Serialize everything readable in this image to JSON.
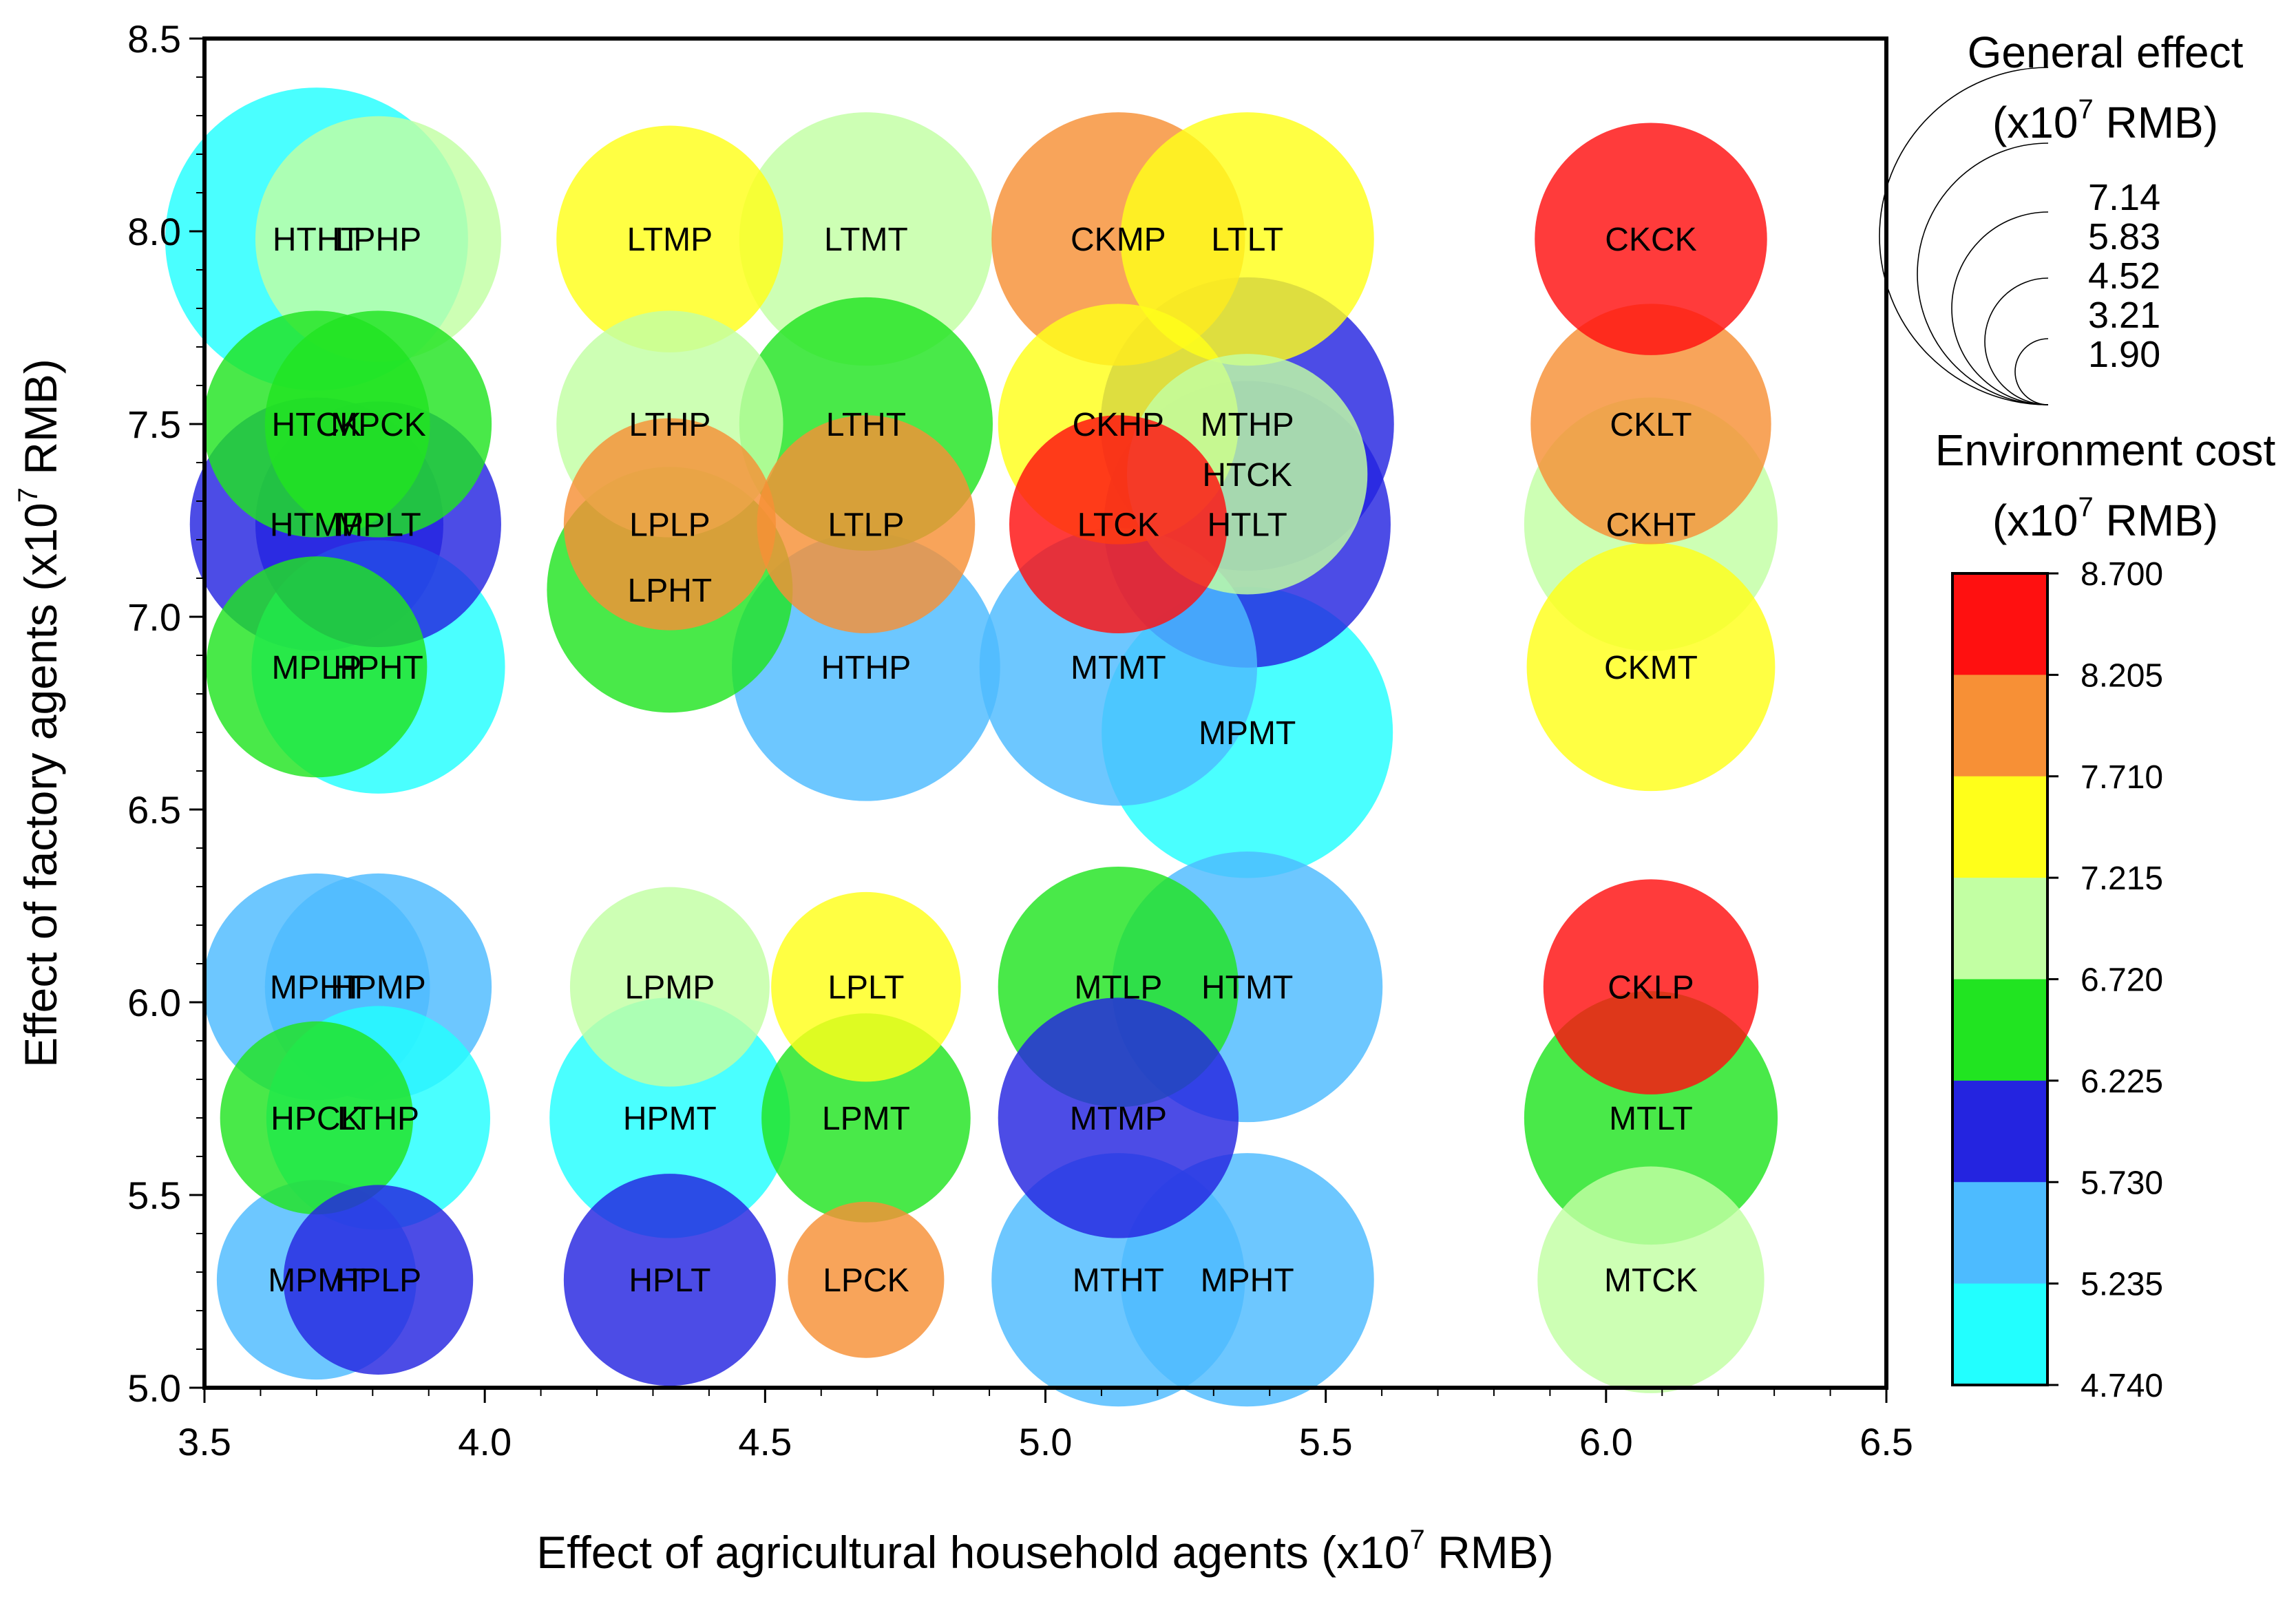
{
  "chart_data": {
    "type": "bubble",
    "title": "",
    "xlabel": "Effect of agricultural household agents (x10",
    "xlabel_exp": "7",
    "xlabel_unit": " RMB)",
    "ylabel": "Effect of factory agents (x10",
    "ylabel_exp": "7",
    "ylabel_unit": " RMB)",
    "xlim": [
      3.5,
      6.5
    ],
    "ylim": [
      5.0,
      8.5
    ],
    "x_ticks": [
      "3.5",
      "4.0",
      "4.5",
      "5.0",
      "5.5",
      "6.0",
      "6.5"
    ],
    "y_ticks": [
      "5.0",
      "5.5",
      "6.0",
      "6.5",
      "7.0",
      "7.5",
      "8.0",
      "8.5"
    ],
    "grid": false,
    "size_legend": {
      "title_line1": "General effect",
      "title_line2_prefix": "(x10",
      "title_line2_exp": "7",
      "title_line2_suffix": " RMB)",
      "values": [
        "7.14",
        "5.83",
        "4.52",
        "3.21",
        "1.90"
      ]
    },
    "color_legend": {
      "title_line1": "Environment cost",
      "title_line2_prefix": "(x10",
      "title_line2_exp": "7",
      "title_line2_suffix": " RMB)",
      "ticks": [
        "8.700",
        "8.205",
        "7.710",
        "7.215",
        "6.720",
        "6.225",
        "5.730",
        "5.235",
        "4.740"
      ],
      "colors": [
        "#ff1010",
        "#f79036",
        "#ffff1a",
        "#c2ffa3",
        "#21e421",
        "#2424e0",
        "#4dbbff",
        "#22ffff"
      ]
    },
    "points": [
      {
        "label": "HTHT",
        "x": 3.7,
        "y": 7.98,
        "size": 7.14,
        "cost": 4.9
      },
      {
        "label": "LPHP",
        "x": 3.81,
        "y": 7.98,
        "size": 4.7,
        "cost": 7.0
      },
      {
        "label": "LTMP",
        "x": 4.33,
        "y": 7.98,
        "size": 4.0,
        "cost": 7.4
      },
      {
        "label": "LTMT",
        "x": 4.68,
        "y": 7.98,
        "size": 5.0,
        "cost": 7.0
      },
      {
        "label": "CKMP",
        "x": 5.13,
        "y": 7.98,
        "size": 5.0,
        "cost": 7.9
      },
      {
        "label": "LTLT",
        "x": 5.36,
        "y": 7.98,
        "size": 5.0,
        "cost": 7.4
      },
      {
        "label": "CKCK",
        "x": 6.08,
        "y": 7.98,
        "size": 4.2,
        "cost": 8.5
      },
      {
        "label": "HTCK",
        "x": 3.7,
        "y": 7.5,
        "size": 4.0,
        "cost": 6.5
      },
      {
        "label": "MPCK",
        "x": 3.81,
        "y": 7.5,
        "size": 4.0,
        "cost": 6.5
      },
      {
        "label": "LTHP",
        "x": 4.33,
        "y": 7.5,
        "size": 4.0,
        "cost": 7.0
      },
      {
        "label": "LTHT",
        "x": 4.68,
        "y": 7.5,
        "size": 5.0,
        "cost": 6.5
      },
      {
        "label": "CKHP",
        "x": 5.13,
        "y": 7.5,
        "size": 4.5,
        "cost": 7.4
      },
      {
        "label": "MTHP",
        "x": 5.36,
        "y": 7.5,
        "size": 6.7,
        "cost": 6.0
      },
      {
        "label": "CKLT",
        "x": 6.08,
        "y": 7.5,
        "size": 4.5,
        "cost": 7.9
      },
      {
        "label": "HTCK",
        "x": 5.36,
        "y": 7.37,
        "size": 4.5,
        "cost": 7.0
      },
      {
        "label": "HTMP",
        "x": 3.7,
        "y": 7.24,
        "size": 5.0,
        "cost": 6.0
      },
      {
        "label": "MPLT",
        "x": 3.81,
        "y": 7.24,
        "size": 4.7,
        "cost": 6.0
      },
      {
        "label": "LPLP",
        "x": 4.33,
        "y": 7.24,
        "size": 3.5,
        "cost": 7.9
      },
      {
        "label": "LTLP",
        "x": 4.68,
        "y": 7.24,
        "size": 3.7,
        "cost": 7.9
      },
      {
        "label": "LTCK",
        "x": 5.13,
        "y": 7.24,
        "size": 3.7,
        "cost": 8.5
      },
      {
        "label": "HTLT",
        "x": 5.36,
        "y": 7.24,
        "size": 6.4,
        "cost": 6.0
      },
      {
        "label": "CKHT",
        "x": 6.08,
        "y": 7.24,
        "size": 5.0,
        "cost": 7.0
      },
      {
        "label": "LPHT",
        "x": 4.33,
        "y": 7.07,
        "size": 4.7,
        "cost": 6.5
      },
      {
        "label": "MPLP",
        "x": 3.7,
        "y": 6.87,
        "size": 3.8,
        "cost": 6.5
      },
      {
        "label": "HPHT",
        "x": 3.81,
        "y": 6.87,
        "size": 5.0,
        "cost": 4.9
      },
      {
        "label": "HTHP",
        "x": 4.68,
        "y": 6.87,
        "size": 5.6,
        "cost": 5.5
      },
      {
        "label": "MTMT",
        "x": 5.13,
        "y": 6.87,
        "size": 6.0,
        "cost": 5.5
      },
      {
        "label": "CKMT",
        "x": 6.08,
        "y": 6.87,
        "size": 4.8,
        "cost": 7.4
      },
      {
        "label": "MPMT",
        "x": 5.36,
        "y": 6.7,
        "size": 6.6,
        "cost": 4.9
      },
      {
        "label": "MPHT",
        "x": 3.7,
        "y": 6.04,
        "size": 4.0,
        "cost": 5.5
      },
      {
        "label": "HPMP",
        "x": 3.81,
        "y": 6.04,
        "size": 4.0,
        "cost": 5.5
      },
      {
        "label": "LPMP",
        "x": 4.33,
        "y": 6.04,
        "size": 3.1,
        "cost": 7.0
      },
      {
        "label": "LPLT",
        "x": 4.68,
        "y": 6.04,
        "size": 2.8,
        "cost": 7.4
      },
      {
        "label": "MTLP",
        "x": 5.13,
        "y": 6.04,
        "size": 4.5,
        "cost": 6.5
      },
      {
        "label": "HTMT",
        "x": 5.36,
        "y": 6.04,
        "size": 5.7,
        "cost": 5.5
      },
      {
        "label": "CKLP",
        "x": 6.08,
        "y": 6.04,
        "size": 3.6,
        "cost": 8.5
      },
      {
        "label": "HPCK",
        "x": 3.7,
        "y": 5.7,
        "size": 2.9,
        "cost": 6.5
      },
      {
        "label": "LTHP",
        "x": 3.81,
        "y": 5.7,
        "size": 3.9,
        "cost": 4.9
      },
      {
        "label": "HPMT",
        "x": 4.33,
        "y": 5.7,
        "size": 4.5,
        "cost": 4.9
      },
      {
        "label": "LPMT",
        "x": 4.68,
        "y": 5.7,
        "size": 3.4,
        "cost": 6.5
      },
      {
        "label": "MTMP",
        "x": 5.13,
        "y": 5.7,
        "size": 4.5,
        "cost": 6.0
      },
      {
        "label": "MTLT",
        "x": 6.08,
        "y": 5.7,
        "size": 5.0,
        "cost": 6.5
      },
      {
        "label": "MPMT",
        "x": 3.7,
        "y": 5.28,
        "size": 3.1,
        "cost": 5.5
      },
      {
        "label": "HPLP",
        "x": 3.81,
        "y": 5.28,
        "size": 2.8,
        "cost": 6.0
      },
      {
        "label": "HPLT",
        "x": 4.33,
        "y": 5.28,
        "size": 3.5,
        "cost": 6.0
      },
      {
        "label": "LPCK",
        "x": 4.68,
        "y": 5.28,
        "size": 1.9,
        "cost": 7.9
      },
      {
        "label": "MTHT",
        "x": 5.13,
        "y": 5.28,
        "size": 5.0,
        "cost": 5.5
      },
      {
        "label": "MPHT",
        "x": 5.36,
        "y": 5.28,
        "size": 5.0,
        "cost": 5.5
      },
      {
        "label": "MTCK",
        "x": 6.08,
        "y": 5.28,
        "size": 4.0,
        "cost": 7.0
      }
    ]
  }
}
